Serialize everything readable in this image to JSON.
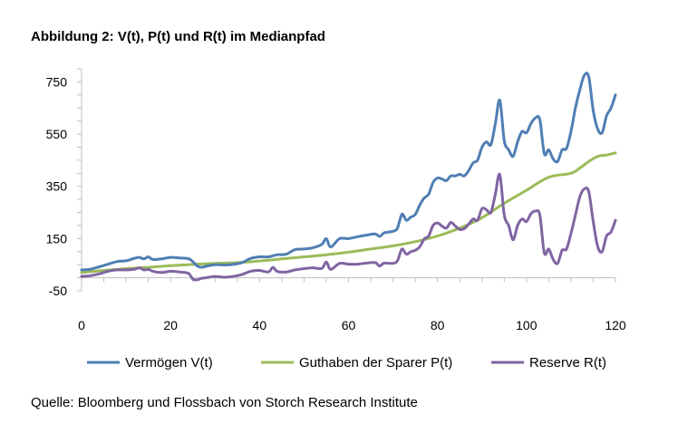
{
  "title": "Abbildung 2: V(t), P(t) und R(t) im Medianpfad",
  "source": "Quelle: Bloomberg und Flossbach von Storch Research Institute",
  "chart_data": {
    "type": "line",
    "xlim": [
      0,
      120
    ],
    "ylim": [
      -50,
      800
    ],
    "xticks": [
      0,
      20,
      40,
      60,
      80,
      100,
      120
    ],
    "yticks": [
      -50,
      150,
      350,
      550,
      750
    ],
    "xlabel": "",
    "ylabel": "",
    "grid": false,
    "legend_position": "bottom",
    "series": [
      {
        "name": "Vermögen V(t)",
        "color": "#4F7EB3",
        "points": [
          [
            0,
            30
          ],
          [
            2,
            33
          ],
          [
            4,
            42
          ],
          [
            6,
            52
          ],
          [
            8,
            62
          ],
          [
            10,
            65
          ],
          [
            12,
            75
          ],
          [
            13,
            78
          ],
          [
            14,
            72
          ],
          [
            15,
            80
          ],
          [
            16,
            70
          ],
          [
            18,
            72
          ],
          [
            20,
            78
          ],
          [
            22,
            76
          ],
          [
            24,
            73
          ],
          [
            25,
            62
          ],
          [
            26,
            45
          ],
          [
            27,
            40
          ],
          [
            28,
            44
          ],
          [
            30,
            50
          ],
          [
            32,
            49
          ],
          [
            34,
            51
          ],
          [
            36,
            58
          ],
          [
            38,
            74
          ],
          [
            40,
            80
          ],
          [
            42,
            80
          ],
          [
            44,
            88
          ],
          [
            46,
            90
          ],
          [
            48,
            108
          ],
          [
            50,
            110
          ],
          [
            52,
            115
          ],
          [
            54,
            128
          ],
          [
            55,
            150
          ],
          [
            56,
            118
          ],
          [
            58,
            150
          ],
          [
            60,
            150
          ],
          [
            62,
            157
          ],
          [
            64,
            163
          ],
          [
            66,
            168
          ],
          [
            67,
            158
          ],
          [
            68,
            172
          ],
          [
            70,
            178
          ],
          [
            71,
            190
          ],
          [
            72,
            243
          ],
          [
            73,
            220
          ],
          [
            74,
            232
          ],
          [
            75,
            242
          ],
          [
            76,
            278
          ],
          [
            77,
            305
          ],
          [
            78,
            320
          ],
          [
            79,
            365
          ],
          [
            80,
            382
          ],
          [
            81,
            378
          ],
          [
            82,
            372
          ],
          [
            83,
            390
          ],
          [
            84,
            390
          ],
          [
            85,
            396
          ],
          [
            86,
            390
          ],
          [
            87,
            410
          ],
          [
            88,
            440
          ],
          [
            89,
            450
          ],
          [
            90,
            500
          ],
          [
            91,
            520
          ],
          [
            92,
            510
          ],
          [
            93,
            590
          ],
          [
            94,
            680
          ],
          [
            95,
            525
          ],
          [
            96,
            490
          ],
          [
            97,
            465
          ],
          [
            98,
            520
          ],
          [
            99,
            560
          ],
          [
            100,
            555
          ],
          [
            101,
            590
          ],
          [
            102,
            612
          ],
          [
            103,
            605
          ],
          [
            104,
            475
          ],
          [
            105,
            490
          ],
          [
            106,
            455
          ],
          [
            107,
            445
          ],
          [
            108,
            490
          ],
          [
            109,
            495
          ],
          [
            110,
            560
          ],
          [
            111,
            650
          ],
          [
            112,
            720
          ],
          [
            113,
            775
          ],
          [
            114,
            770
          ],
          [
            115,
            640
          ],
          [
            116,
            570
          ],
          [
            117,
            555
          ],
          [
            118,
            620
          ],
          [
            119,
            650
          ],
          [
            120,
            700
          ]
        ]
      },
      {
        "name": "Guthaben der Sparer P(t)",
        "color": "#9BBB59",
        "points": [
          [
            0,
            20
          ],
          [
            5,
            28
          ],
          [
            10,
            35
          ],
          [
            15,
            40
          ],
          [
            20,
            46
          ],
          [
            25,
            51
          ],
          [
            30,
            55
          ],
          [
            35,
            58
          ],
          [
            40,
            64
          ],
          [
            45,
            72
          ],
          [
            50,
            80
          ],
          [
            55,
            88
          ],
          [
            60,
            98
          ],
          [
            65,
            110
          ],
          [
            70,
            122
          ],
          [
            75,
            138
          ],
          [
            80,
            160
          ],
          [
            85,
            190
          ],
          [
            90,
            230
          ],
          [
            95,
            285
          ],
          [
            100,
            335
          ],
          [
            105,
            385
          ],
          [
            110,
            400
          ],
          [
            112,
            420
          ],
          [
            114,
            445
          ],
          [
            116,
            465
          ],
          [
            118,
            470
          ],
          [
            120,
            478
          ]
        ]
      },
      {
        "name": "Reserve R(t)",
        "color": "#8064A2",
        "points": [
          [
            0,
            5
          ],
          [
            2,
            8
          ],
          [
            4,
            15
          ],
          [
            6,
            25
          ],
          [
            8,
            30
          ],
          [
            10,
            30
          ],
          [
            12,
            33
          ],
          [
            13,
            38
          ],
          [
            14,
            30
          ],
          [
            15,
            32
          ],
          [
            16,
            25
          ],
          [
            18,
            20
          ],
          [
            20,
            25
          ],
          [
            22,
            22
          ],
          [
            24,
            17
          ],
          [
            25,
            -5
          ],
          [
            26,
            -8
          ],
          [
            27,
            -2
          ],
          [
            28,
            0
          ],
          [
            30,
            5
          ],
          [
            32,
            2
          ],
          [
            34,
            5
          ],
          [
            36,
            12
          ],
          [
            38,
            25
          ],
          [
            40,
            28
          ],
          [
            42,
            22
          ],
          [
            43,
            40
          ],
          [
            44,
            24
          ],
          [
            46,
            22
          ],
          [
            48,
            30
          ],
          [
            50,
            35
          ],
          [
            52,
            38
          ],
          [
            54,
            36
          ],
          [
            55,
            60
          ],
          [
            56,
            32
          ],
          [
            58,
            55
          ],
          [
            60,
            52
          ],
          [
            62,
            52
          ],
          [
            64,
            56
          ],
          [
            66,
            58
          ],
          [
            67,
            45
          ],
          [
            68,
            56
          ],
          [
            70,
            55
          ],
          [
            71,
            65
          ],
          [
            72,
            110
          ],
          [
            73,
            90
          ],
          [
            74,
            100
          ],
          [
            75,
            105
          ],
          [
            76,
            118
          ],
          [
            77,
            148
          ],
          [
            78,
            160
          ],
          [
            79,
            200
          ],
          [
            80,
            210
          ],
          [
            81,
            198
          ],
          [
            82,
            190
          ],
          [
            83,
            212
          ],
          [
            84,
            198
          ],
          [
            85,
            185
          ],
          [
            86,
            188
          ],
          [
            87,
            205
          ],
          [
            88,
            225
          ],
          [
            89,
            220
          ],
          [
            90,
            265
          ],
          [
            91,
            260
          ],
          [
            92,
            250
          ],
          [
            93,
            320
          ],
          [
            94,
            395
          ],
          [
            95,
            240
          ],
          [
            96,
            200
          ],
          [
            97,
            145
          ],
          [
            98,
            200
          ],
          [
            99,
            225
          ],
          [
            100,
            215
          ],
          [
            101,
            245
          ],
          [
            102,
            255
          ],
          [
            103,
            240
          ],
          [
            104,
            95
          ],
          [
            105,
            110
          ],
          [
            106,
            70
          ],
          [
            107,
            55
          ],
          [
            108,
            105
          ],
          [
            109,
            110
          ],
          [
            110,
            170
          ],
          [
            111,
            240
          ],
          [
            112,
            310
          ],
          [
            113,
            340
          ],
          [
            114,
            330
          ],
          [
            115,
            215
          ],
          [
            116,
            120
          ],
          [
            117,
            100
          ],
          [
            118,
            160
          ],
          [
            119,
            175
          ],
          [
            120,
            220
          ]
        ]
      }
    ]
  }
}
